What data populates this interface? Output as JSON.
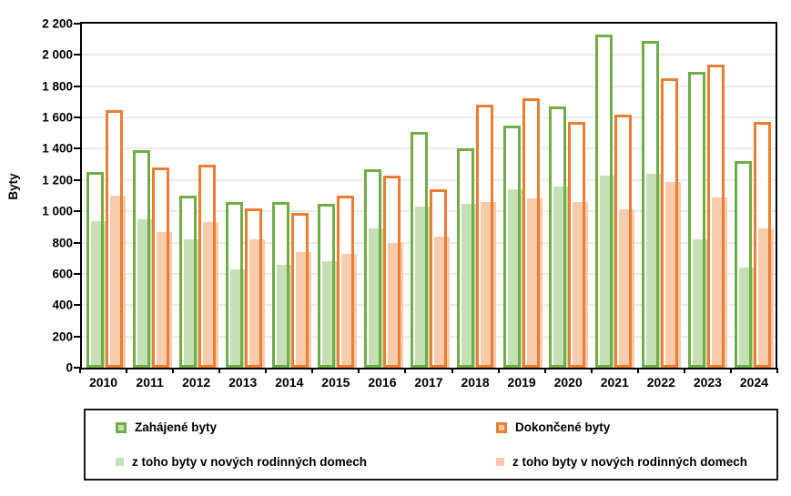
{
  "chart_data": {
    "type": "bar",
    "title": "",
    "xlabel": "",
    "ylabel": "Byty",
    "ylim": [
      0,
      2200
    ],
    "ytick_step": 200,
    "yticks": [
      "0",
      "200",
      "400",
      "600",
      "800",
      "1 000",
      "1 200",
      "1 400",
      "1 600",
      "1 800",
      "2 000",
      "2 200"
    ],
    "grid": true,
    "legend_position": "bottom-box",
    "categories": [
      "2010",
      "2011",
      "2012",
      "2013",
      "2014",
      "2015",
      "2016",
      "2017",
      "2018",
      "2019",
      "2020",
      "2021",
      "2022",
      "2023",
      "2024"
    ],
    "series": [
      {
        "key": "zahajene-byty",
        "name": "Zahájené byty",
        "render": "outline",
        "color": "#70AD47",
        "values": [
          1250,
          1390,
          1100,
          1060,
          1060,
          1050,
          1270,
          1510,
          1400,
          1550,
          1670,
          2130,
          2090,
          1890,
          1320
        ]
      },
      {
        "key": "zahajene-byty-rd",
        "name": "z toho byty v nových rodinných domech",
        "render": "fill",
        "color": "#C5E0B4",
        "values": [
          940,
          950,
          820,
          630,
          660,
          680,
          890,
          1030,
          1050,
          1140,
          1160,
          1230,
          1240,
          820,
          640
        ]
      },
      {
        "key": "dokoncene-byty",
        "name": "Dokončené byty",
        "render": "outline",
        "color": "#ED7D31",
        "values": [
          1650,
          1280,
          1300,
          1020,
          990,
          1100,
          1230,
          1140,
          1680,
          1720,
          1570,
          1620,
          1850,
          1940,
          1570
        ]
      },
      {
        "key": "dokoncene-byty-rd",
        "name": "z toho byty v nových rodinných domech",
        "render": "fill",
        "color": "#F8CBAD",
        "values": [
          1100,
          870,
          930,
          820,
          740,
          730,
          800,
          840,
          1060,
          1080,
          1060,
          1010,
          1190,
          1090,
          890
        ]
      }
    ]
  }
}
